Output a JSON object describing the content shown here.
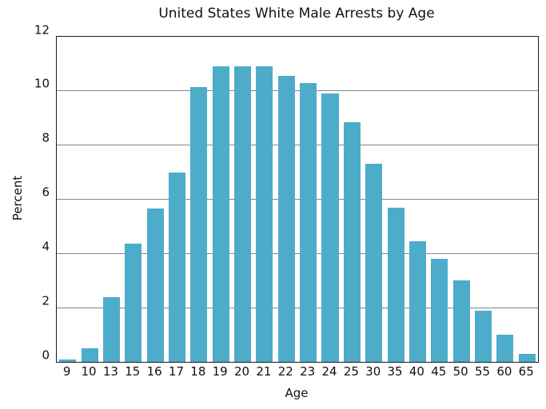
{
  "chart_data": {
    "type": "bar",
    "title": "United States White Male Arrests by Age",
    "xlabel": "Age",
    "ylabel": "Percent",
    "categories": [
      "9",
      "10",
      "13",
      "15",
      "16",
      "17",
      "18",
      "19",
      "20",
      "21",
      "22",
      "23",
      "24",
      "25",
      "30",
      "35",
      "40",
      "45",
      "50",
      "55",
      "60",
      "65"
    ],
    "values": [
      0.1,
      0.5,
      2.4,
      4.35,
      5.65,
      7.0,
      10.15,
      10.9,
      10.9,
      10.9,
      10.55,
      10.3,
      9.9,
      8.85,
      7.3,
      5.7,
      4.45,
      3.8,
      3.0,
      1.9,
      1.0,
      0.3
    ],
    "ylim": [
      0,
      12
    ],
    "yticks": [
      0,
      2,
      4,
      6,
      8,
      10,
      12
    ],
    "grid": "horizontal",
    "legend": "none",
    "colors": {
      "bar": "#4dacca",
      "gridline": "#868686",
      "spine": "#1c1c1c",
      "text": "#111111",
      "background": "#ffffff"
    }
  }
}
